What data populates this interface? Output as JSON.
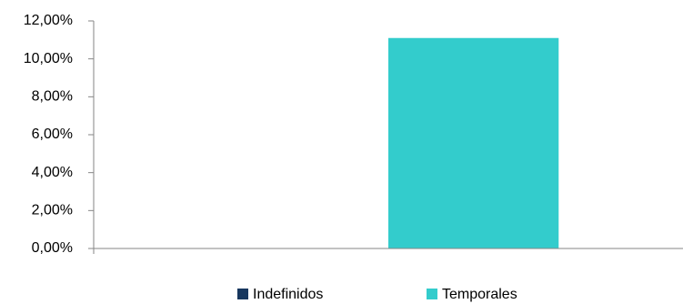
{
  "chart_data": {
    "type": "bar",
    "categories": [
      null
    ],
    "series": [
      {
        "name": "Indefinidos",
        "color": "#17375e",
        "values": [
          0
        ]
      },
      {
        "name": "Temporales",
        "color": "#33cccc",
        "values": [
          11.1
        ]
      }
    ],
    "ylim": [
      0,
      12
    ],
    "yticks": [
      {
        "value": 0,
        "label": "0,00%"
      },
      {
        "value": 2,
        "label": "2,00%"
      },
      {
        "value": 4,
        "label": "4,00%"
      },
      {
        "value": 6,
        "label": "6,00%"
      },
      {
        "value": 8,
        "label": "8,00%"
      },
      {
        "value": 10,
        "label": "10,00%"
      },
      {
        "value": 12,
        "label": "12,00%"
      }
    ],
    "grid": false,
    "legend": "bottom"
  }
}
